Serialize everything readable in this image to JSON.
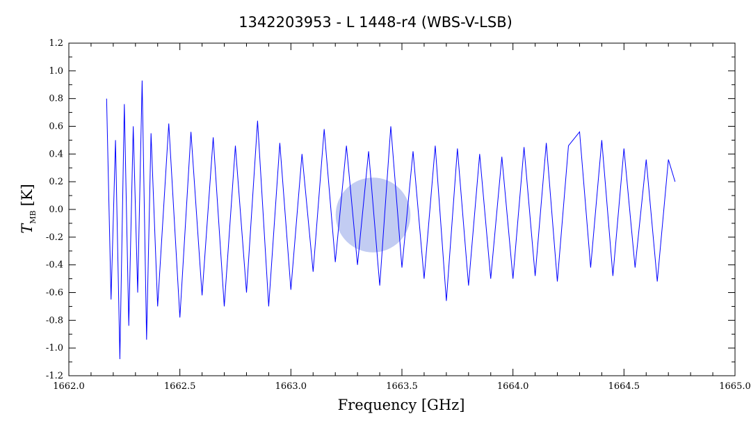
{
  "chart_data": {
    "type": "line",
    "title": "1342203953 - L 1448-r4 (WBS-V-LSB)",
    "xlabel": "Frequency [GHz]",
    "ylabel_main": "T",
    "ylabel_sub": "MB",
    "ylabel_unit": "[K]",
    "xlim": [
      1662.0,
      1665.0
    ],
    "ylim": [
      -1.2,
      1.2
    ],
    "xticks": [
      1662.0,
      1662.5,
      1663.0,
      1663.5,
      1664.0,
      1664.5,
      1665.0
    ],
    "xtick_labels": [
      "1662.0",
      "1662.5",
      "1663.0",
      "1663.5",
      "1664.0",
      "1664.5",
      "1665.0"
    ],
    "yticks": [
      -1.2,
      -1.0,
      -0.8,
      -0.6,
      -0.4,
      -0.2,
      0.0,
      0.2,
      0.4,
      0.6,
      0.8,
      1.0,
      1.2
    ],
    "ytick_labels": [
      "-1.2",
      "-1.0",
      "-0.8",
      "-0.6",
      "-0.4",
      "-0.2",
      "0.0",
      "0.2",
      "0.4",
      "0.6",
      "0.8",
      "1.0",
      "1.2"
    ],
    "grid": false,
    "line_color": "#0000ff",
    "highlight_color": "#8fa3e8",
    "series": [
      {
        "x": [
          1662.17,
          1662.19,
          1662.21,
          1662.23,
          1662.25,
          1662.27,
          1662.29,
          1662.31,
          1662.33,
          1662.35,
          1662.37,
          1662.4,
          1662.45,
          1662.5,
          1662.55,
          1662.6,
          1662.65,
          1662.7,
          1662.75,
          1662.8,
          1662.85,
          1662.9,
          1662.95,
          1663.0,
          1663.05,
          1663.1,
          1663.15,
          1663.2,
          1663.25,
          1663.3,
          1663.35,
          1663.4,
          1663.45,
          1663.5,
          1663.55,
          1663.6,
          1663.65,
          1663.7,
          1663.75,
          1663.8,
          1663.85,
          1663.9,
          1663.95,
          1664.0,
          1664.05,
          1664.1,
          1664.15,
          1664.2,
          1664.25,
          1664.3,
          1664.35,
          1664.4,
          1664.45,
          1664.5,
          1664.55,
          1664.6,
          1664.65,
          1664.7,
          1664.73
        ],
        "y": [
          0.8,
          -0.65,
          0.5,
          -1.08,
          0.76,
          -0.84,
          0.6,
          -0.6,
          0.93,
          -0.94,
          0.55,
          -0.7,
          0.62,
          -0.78,
          0.56,
          -0.62,
          0.52,
          -0.7,
          0.46,
          -0.6,
          0.64,
          -0.7,
          0.48,
          -0.58,
          0.4,
          -0.45,
          0.58,
          -0.38,
          0.46,
          -0.4,
          0.42,
          -0.55,
          0.6,
          -0.42,
          0.42,
          -0.5,
          0.46,
          -0.66,
          0.44,
          -0.55,
          0.4,
          -0.5,
          0.38,
          -0.5,
          0.45,
          -0.48,
          0.48,
          -0.52,
          0.46,
          0.56,
          -0.42,
          0.5,
          -0.48,
          0.44,
          -0.42,
          0.36,
          -0.52,
          0.36,
          0.2
        ]
      }
    ],
    "highlight": {
      "x": 1663.37,
      "y": -0.04,
      "radius_data_y": 0.27
    }
  }
}
